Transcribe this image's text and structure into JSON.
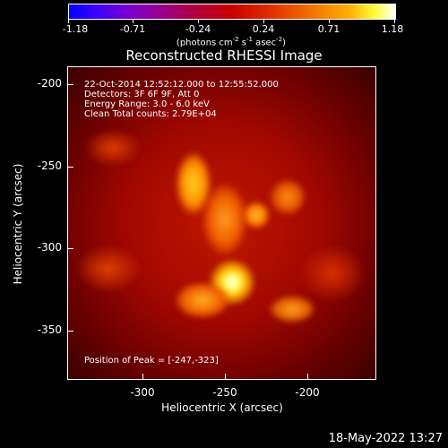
{
  "colorbar": {
    "labels": [
      "-1.18",
      "-0.71",
      "-0.24",
      "0.24",
      "0.71",
      "1.18"
    ],
    "units_prefix": "(photons cm",
    "units_mid": " s",
    "units_suffix": " asec",
    "units_end": ")",
    "exp1": "-2",
    "exp2": "-1",
    "exp3": "-2"
  },
  "title": "Reconstructed RHESSI Image",
  "info": {
    "time": "22-Oct-2014 12:52:12.000 to 12:55:52.000",
    "detectors": "Detectors: 3F 6F 9F, Att 0",
    "energy": "Energy Range: 3.0 - 6.0 keV",
    "clean": "Clean     Total counts: 2.79E+04",
    "peak": "Position of Peak = [-247,-323]"
  },
  "axes": {
    "x_ticks": [
      "-300",
      "-250",
      "-200"
    ],
    "y_ticks": [
      "-200",
      "-250",
      "-300",
      "-350"
    ],
    "x_title": "Heliocentric X (arcsec)",
    "y_title": "Heliocentric Y (arcsec)"
  },
  "timestamp": "18-May-2022 13:27",
  "colors": {
    "background": "#000000",
    "foreground": "#ffffff"
  }
}
